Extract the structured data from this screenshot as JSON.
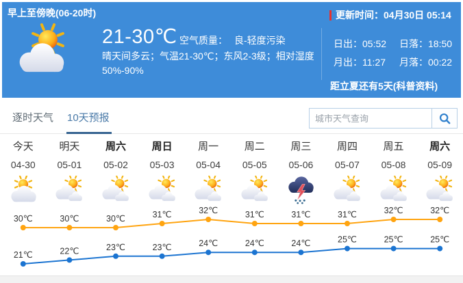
{
  "header": {
    "period_title": "早上至傍晚(06-20时)",
    "main_icon": "sun-cloud",
    "temp_range": "21-30℃",
    "air_quality_label": "空气质量：",
    "air_quality_value": "良-轻度污染",
    "description": "晴天间多云；气温21-30℃；东风2-3级；相对湿度50%-90%",
    "update_label": "更新时间：",
    "update_value": "04月30日 05:14",
    "sunrise_label": "日出：",
    "sunrise": "05:52",
    "sunset_label": "日落：",
    "sunset": "18:50",
    "moonrise_label": "月出：",
    "moonrise": "11:27",
    "moonset_label": "月落：",
    "moonset": "00:22",
    "solar_term_note": "距立夏还有5天(科普资料)"
  },
  "tabs": [
    {
      "label": "逐时天气",
      "active": false
    },
    {
      "label": "10天预报",
      "active": true
    }
  ],
  "search": {
    "placeholder": "城市天气查询",
    "icon": "search-icon"
  },
  "colors": {
    "hero_bg": "#3e8cd9",
    "accent_red": "#e8322d",
    "tab_active": "#33618f",
    "high_line": "#ffa410",
    "low_line": "#1b74d1"
  },
  "chart_data": {
    "type": "line",
    "title": "10天预报 temperature trend",
    "categories": [
      "今天",
      "明天",
      "周六",
      "周日",
      "周一",
      "周二",
      "周三",
      "周四",
      "周五",
      "周六"
    ],
    "dates": [
      "04-30",
      "05-01",
      "05-02",
      "05-03",
      "05-04",
      "05-05",
      "05-06",
      "05-07",
      "05-08",
      "05-09"
    ],
    "bold_days": [
      false,
      false,
      true,
      true,
      false,
      false,
      false,
      false,
      false,
      true
    ],
    "icons": [
      "sun-cloud",
      "cloudy",
      "cloudy",
      "cloudy",
      "cloudy",
      "cloudy",
      "thunderstorm",
      "cloudy",
      "cloudy",
      "cloudy"
    ],
    "unit": "℃",
    "grid": false,
    "legend": "none",
    "series": [
      {
        "name": "high",
        "color": "#ffa410",
        "values": [
          30,
          30,
          30,
          31,
          32,
          31,
          31,
          31,
          32,
          32
        ]
      },
      {
        "name": "low",
        "color": "#1b74d1",
        "values": [
          21,
          22,
          23,
          23,
          24,
          24,
          24,
          25,
          25,
          25
        ]
      }
    ]
  }
}
